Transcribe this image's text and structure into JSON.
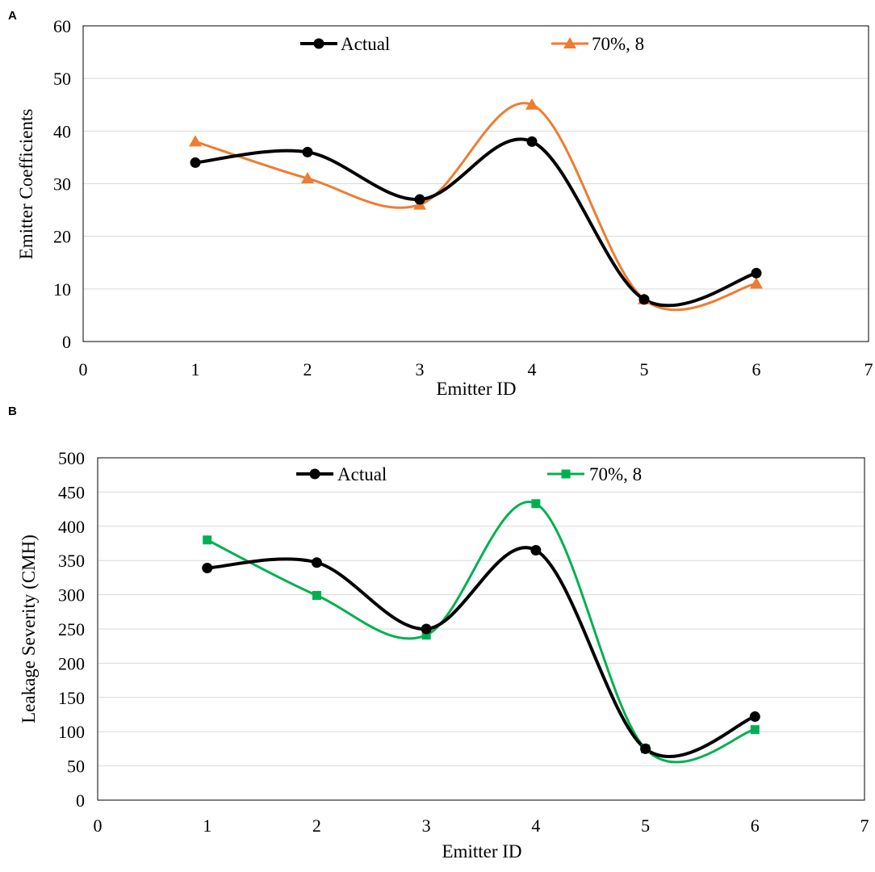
{
  "chart_data": [
    {
      "panel": "A",
      "type": "line",
      "xlabel": "Emitter ID",
      "ylabel": "Emitter Coefficients",
      "xlim": [
        0,
        7
      ],
      "ylim": [
        0,
        60
      ],
      "xticks": [
        0,
        1,
        2,
        3,
        4,
        5,
        6,
        7
      ],
      "yticks": [
        0,
        10,
        20,
        30,
        40,
        50,
        60
      ],
      "grid": true,
      "legend_position": "top",
      "x": [
        1,
        2,
        3,
        4,
        5,
        6
      ],
      "series": [
        {
          "name": "Actual",
          "values": [
            34,
            36,
            27,
            38,
            8,
            13
          ],
          "color": "#000000",
          "marker": "circle"
        },
        {
          "name": "70%, 8",
          "values": [
            38,
            31,
            26,
            45,
            8,
            11
          ],
          "color": "#ed7d31",
          "marker": "triangle"
        }
      ]
    },
    {
      "panel": "B",
      "type": "line",
      "xlabel": "Emitter ID",
      "ylabel": "Leakage Severity (CMH)",
      "xlim": [
        0,
        7
      ],
      "ylim": [
        0,
        500
      ],
      "xticks": [
        0,
        1,
        2,
        3,
        4,
        5,
        6,
        7
      ],
      "yticks": [
        0,
        50,
        100,
        150,
        200,
        250,
        300,
        350,
        400,
        450,
        500
      ],
      "grid": true,
      "legend_position": "top",
      "x": [
        1,
        2,
        3,
        4,
        5,
        6
      ],
      "series": [
        {
          "name": "Actual",
          "values": [
            339,
            347,
            250,
            365,
            75,
            122
          ],
          "color": "#000000",
          "marker": "circle"
        },
        {
          "name": "70%, 8",
          "values": [
            380,
            299,
            241,
            433,
            75,
            103
          ],
          "color": "#00b050",
          "marker": "square"
        }
      ]
    }
  ]
}
